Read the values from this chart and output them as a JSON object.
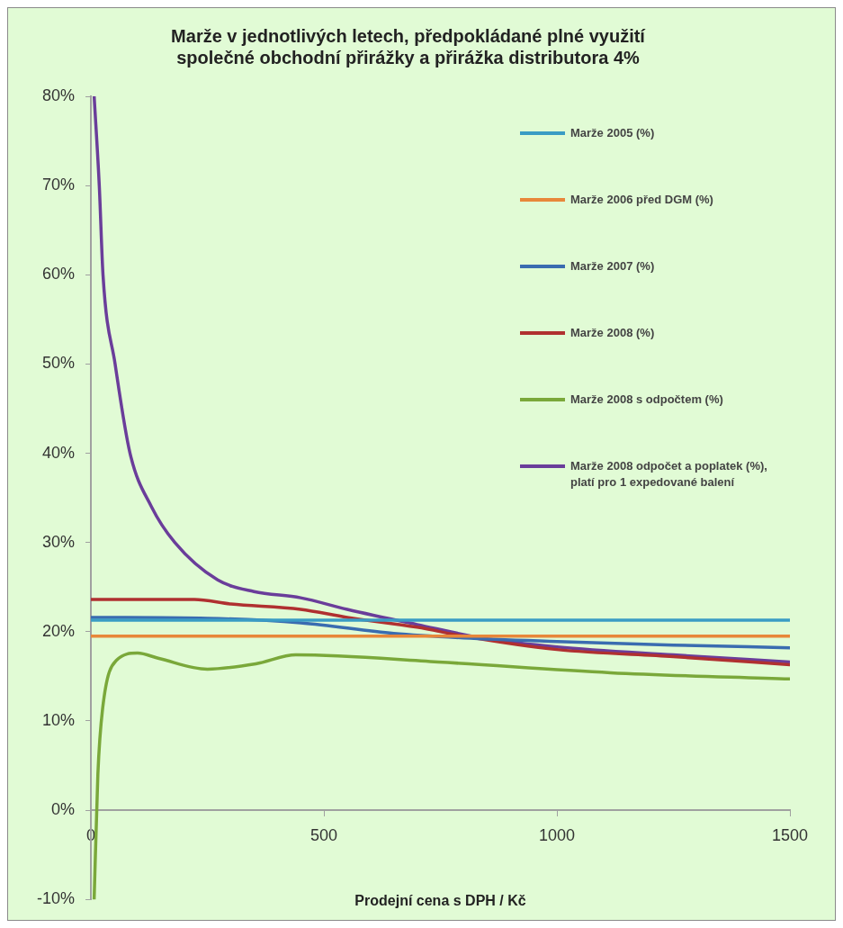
{
  "chart_data": {
    "type": "line",
    "title": "Marže v jednotlivých letech, předpokládané plné využití společné obchodní přirážky a přirážka distributora 4%",
    "xlabel": "Prodejní cena s DPH / Kč",
    "xlim": [
      0,
      1500
    ],
    "xticks": [
      0,
      500,
      1000,
      1500
    ],
    "ylim": [
      -10,
      80
    ],
    "yticks": [
      {
        "value": -10,
        "label": "-10%"
      },
      {
        "value": 0,
        "label": "0%"
      },
      {
        "value": 10,
        "label": "10%"
      },
      {
        "value": 20,
        "label": "20%"
      },
      {
        "value": 30,
        "label": "30%"
      },
      {
        "value": 40,
        "label": "40%"
      },
      {
        "value": 50,
        "label": "50%"
      },
      {
        "value": 60,
        "label": "60%"
      },
      {
        "value": 70,
        "label": "70%"
      },
      {
        "value": 80,
        "label": "80%"
      }
    ],
    "grid": false,
    "legend": "top right",
    "marker": "none",
    "line_style": "solid",
    "series": [
      {
        "name": "Marže 2005 (%)",
        "color": "#3a9cc4",
        "x": [
          0,
          1500
        ],
        "values": [
          21.3,
          21.3
        ]
      },
      {
        "name": "Marže 2006 před DGM (%)",
        "color": "#e8873a",
        "x": [
          0,
          1500
        ],
        "values": [
          19.5,
          19.5
        ]
      },
      {
        "name": "Marže 2007 (%)",
        "color": "#3a6cb0",
        "x": [
          0,
          250,
          450,
          650,
          800,
          1000,
          1250,
          1500
        ],
        "values": [
          21.6,
          21.5,
          21.0,
          19.8,
          19.3,
          18.9,
          18.5,
          18.2
        ]
      },
      {
        "name": "Marže 2008 (%)",
        "color": "#b03030",
        "x": [
          0,
          222,
          300,
          450,
          550,
          700,
          800,
          1000,
          1250,
          1500
        ],
        "values": [
          23.6,
          23.6,
          23.1,
          22.5,
          21.6,
          20.5,
          19.5,
          18.0,
          17.2,
          16.3
        ]
      },
      {
        "name": "Marže 2008 s odpočtem (%)",
        "color": "#7aa83a",
        "x": [
          7,
          15,
          25,
          55,
          100,
          146,
          250,
          354,
          440,
          745,
          1115,
          1500
        ],
        "values": [
          -10,
          4,
          11.3,
          16.8,
          17.6,
          17.0,
          15.8,
          16.4,
          17.4,
          16.6,
          15.4,
          14.7
        ]
      },
      {
        "name": "Marže 2008 odpočet a poplatek (%), platí pro 1 expedované balení",
        "color": "#6a3d9a",
        "x": [
          7,
          18,
          26,
          52,
          84,
          130,
          180,
          272,
          350,
          450,
          550,
          700,
          850,
          1000,
          1250,
          1500
        ],
        "values": [
          80,
          70,
          60,
          50,
          40,
          34,
          30,
          25.8,
          24.5,
          23.8,
          22.5,
          20.8,
          19.2,
          18.3,
          17.4,
          16.6
        ]
      }
    ]
  }
}
